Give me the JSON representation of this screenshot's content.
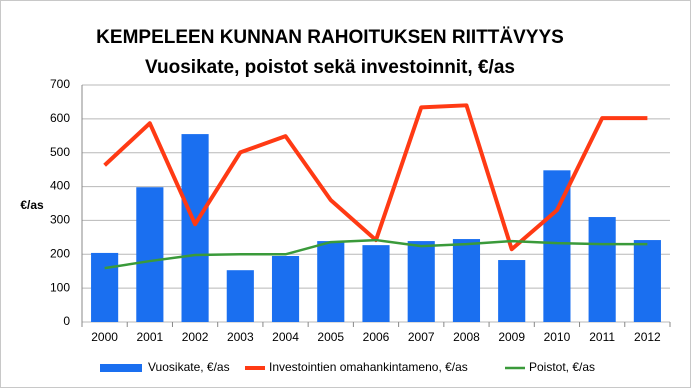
{
  "chart_data": {
    "type": "bar",
    "title": "KEMPELEEN KUNNAN RAHOITUKSEN RIITTÄVYYS",
    "subtitle": "Vuosikate, poistot sekä investoinnit,  €/as",
    "y_label": "€/as",
    "categories": [
      "2000",
      "2001",
      "2002",
      "2003",
      "2004",
      "2005",
      "2006",
      "2007",
      "2008",
      "2009",
      "2010",
      "2011",
      "2012"
    ],
    "series": [
      {
        "name": "Vuosikate, €/as",
        "type": "bar",
        "color": "#1a6ff0",
        "values": [
          204,
          398,
          555,
          153,
          195,
          239,
          227,
          239,
          245,
          183,
          448,
          310,
          242
        ]
      },
      {
        "name": "Investointien omahankintameno, €/as",
        "type": "line",
        "color": "#ff3a14",
        "values": [
          463,
          587,
          289,
          501,
          549,
          360,
          242,
          634,
          640,
          215,
          330,
          602,
          602
        ]
      },
      {
        "name": "Poistot, €/as",
        "type": "line",
        "color": "#3a9a3a",
        "values": [
          159,
          180,
          198,
          200,
          200,
          236,
          242,
          224,
          230,
          239,
          233,
          230,
          230
        ]
      }
    ],
    "ylim": [
      0,
      700
    ],
    "yticks": [
      0,
      100,
      200,
      300,
      400,
      500,
      600,
      700
    ],
    "grid": true,
    "legend": "bottom"
  }
}
